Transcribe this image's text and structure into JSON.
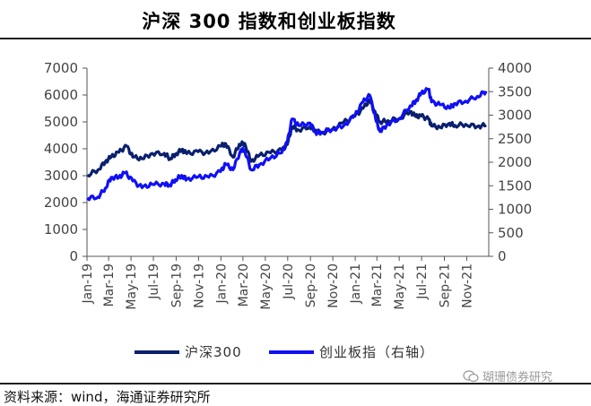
{
  "title": "沪深 300 指数和创业板指数",
  "source": "资料来源：wind，海通证券研究所",
  "watermark": "瑚珊债券研究",
  "chart_data": {
    "type": "line",
    "title": "沪深 300 指数和创业板指数",
    "y_left": {
      "min": 0,
      "max": 7000,
      "ticks": [
        0,
        1000,
        2000,
        3000,
        4000,
        5000,
        6000,
        7000
      ]
    },
    "y_right": {
      "min": 0,
      "max": 4000,
      "ticks": [
        0,
        500,
        1000,
        1500,
        2000,
        2500,
        3000,
        3500,
        4000
      ]
    },
    "x_range": [
      "2019-01-01",
      "2021-12-31"
    ],
    "x_tick_labels": [
      "Jan-19",
      "Mar-19",
      "May-19",
      "Jul-19",
      "Sep-19",
      "Nov-19",
      "Jan-20",
      "Mar-20",
      "May-20",
      "Jul-20",
      "Sep-20",
      "Nov-20",
      "Jan-21",
      "Mar-21",
      "May-21",
      "Jul-21",
      "Sep-21",
      "Nov-21"
    ],
    "legend": "bottom",
    "series": [
      {
        "name": "沪深300",
        "axis": "left",
        "color": "#0a1f6e",
        "points": [
          [
            "2019-01-02",
            3020
          ],
          [
            "2019-01-31",
            3220
          ],
          [
            "2019-02-20",
            3520
          ],
          [
            "2019-03-08",
            3700
          ],
          [
            "2019-03-29",
            3870
          ],
          [
            "2019-04-19",
            4100
          ],
          [
            "2019-05-06",
            3690
          ],
          [
            "2019-05-31",
            3630
          ],
          [
            "2019-06-28",
            3830
          ],
          [
            "2019-07-31",
            3830
          ],
          [
            "2019-08-15",
            3640
          ],
          [
            "2019-08-30",
            3800
          ],
          [
            "2019-09-16",
            3960
          ],
          [
            "2019-09-30",
            3820
          ],
          [
            "2019-10-31",
            3890
          ],
          [
            "2019-11-29",
            3830
          ],
          [
            "2019-12-31",
            4100
          ],
          [
            "2020-01-14",
            4190
          ],
          [
            "2020-02-03",
            3690
          ],
          [
            "2020-02-20",
            4170
          ],
          [
            "2020-03-06",
            4200
          ],
          [
            "2020-03-23",
            3530
          ],
          [
            "2020-04-15",
            3760
          ],
          [
            "2020-05-15",
            3850
          ],
          [
            "2020-06-15",
            3950
          ],
          [
            "2020-06-30",
            4160
          ],
          [
            "2020-07-13",
            4820
          ],
          [
            "2020-07-31",
            4700
          ],
          [
            "2020-08-31",
            4830
          ],
          [
            "2020-09-15",
            4700
          ],
          [
            "2020-09-30",
            4590
          ],
          [
            "2020-10-30",
            4700
          ],
          [
            "2020-11-30",
            4980
          ],
          [
            "2020-12-31",
            5210
          ],
          [
            "2021-01-22",
            5500
          ],
          [
            "2021-02-10",
            5810
          ],
          [
            "2021-02-26",
            5300
          ],
          [
            "2021-03-10",
            5000
          ],
          [
            "2021-03-31",
            5050
          ],
          [
            "2021-04-30",
            5120
          ],
          [
            "2021-05-31",
            5380
          ],
          [
            "2021-06-15",
            5200
          ],
          [
            "2021-06-30",
            5220
          ],
          [
            "2021-07-20",
            5100
          ],
          [
            "2021-07-28",
            4850
          ],
          [
            "2021-08-20",
            4800
          ],
          [
            "2021-09-15",
            4950
          ],
          [
            "2021-09-30",
            4870
          ],
          [
            "2021-10-29",
            4910
          ],
          [
            "2021-11-30",
            4830
          ],
          [
            "2021-12-24",
            4880
          ]
        ]
      },
      {
        "name": "创业板指（右轴）",
        "axis": "right",
        "color": "#1010f5",
        "points": [
          [
            "2019-01-02",
            1240
          ],
          [
            "2019-01-31",
            1260
          ],
          [
            "2019-02-20",
            1450
          ],
          [
            "2019-03-08",
            1680
          ],
          [
            "2019-03-29",
            1680
          ],
          [
            "2019-04-15",
            1780
          ],
          [
            "2019-05-06",
            1600
          ],
          [
            "2019-05-31",
            1460
          ],
          [
            "2019-06-28",
            1530
          ],
          [
            "2019-07-31",
            1540
          ],
          [
            "2019-08-15",
            1520
          ],
          [
            "2019-08-30",
            1630
          ],
          [
            "2019-09-16",
            1720
          ],
          [
            "2019-09-30",
            1640
          ],
          [
            "2019-10-31",
            1690
          ],
          [
            "2019-11-29",
            1680
          ],
          [
            "2019-12-31",
            1800
          ],
          [
            "2020-01-14",
            1960
          ],
          [
            "2020-02-03",
            1840
          ],
          [
            "2020-02-25",
            2270
          ],
          [
            "2020-03-06",
            2250
          ],
          [
            "2020-03-23",
            1840
          ],
          [
            "2020-04-15",
            1950
          ],
          [
            "2020-05-15",
            2090
          ],
          [
            "2020-06-15",
            2200
          ],
          [
            "2020-06-30",
            2430
          ],
          [
            "2020-07-13",
            2920
          ],
          [
            "2020-07-31",
            2780
          ],
          [
            "2020-08-31",
            2830
          ],
          [
            "2020-09-15",
            2630
          ],
          [
            "2020-09-30",
            2640
          ],
          [
            "2020-10-30",
            2700
          ],
          [
            "2020-11-30",
            2770
          ],
          [
            "2020-12-31",
            2990
          ],
          [
            "2021-01-22",
            3280
          ],
          [
            "2021-02-10",
            3420
          ],
          [
            "2021-02-26",
            2900
          ],
          [
            "2021-03-10",
            2650
          ],
          [
            "2021-03-31",
            2820
          ],
          [
            "2021-04-30",
            2920
          ],
          [
            "2021-05-31",
            3200
          ],
          [
            "2021-06-15",
            3300
          ],
          [
            "2021-06-30",
            3470
          ],
          [
            "2021-07-20",
            3550
          ],
          [
            "2021-07-28",
            3280
          ],
          [
            "2021-08-20",
            3220
          ],
          [
            "2021-09-15",
            3150
          ],
          [
            "2021-09-30",
            3250
          ],
          [
            "2021-10-29",
            3300
          ],
          [
            "2021-11-30",
            3400
          ],
          [
            "2021-12-24",
            3510
          ]
        ]
      }
    ]
  }
}
